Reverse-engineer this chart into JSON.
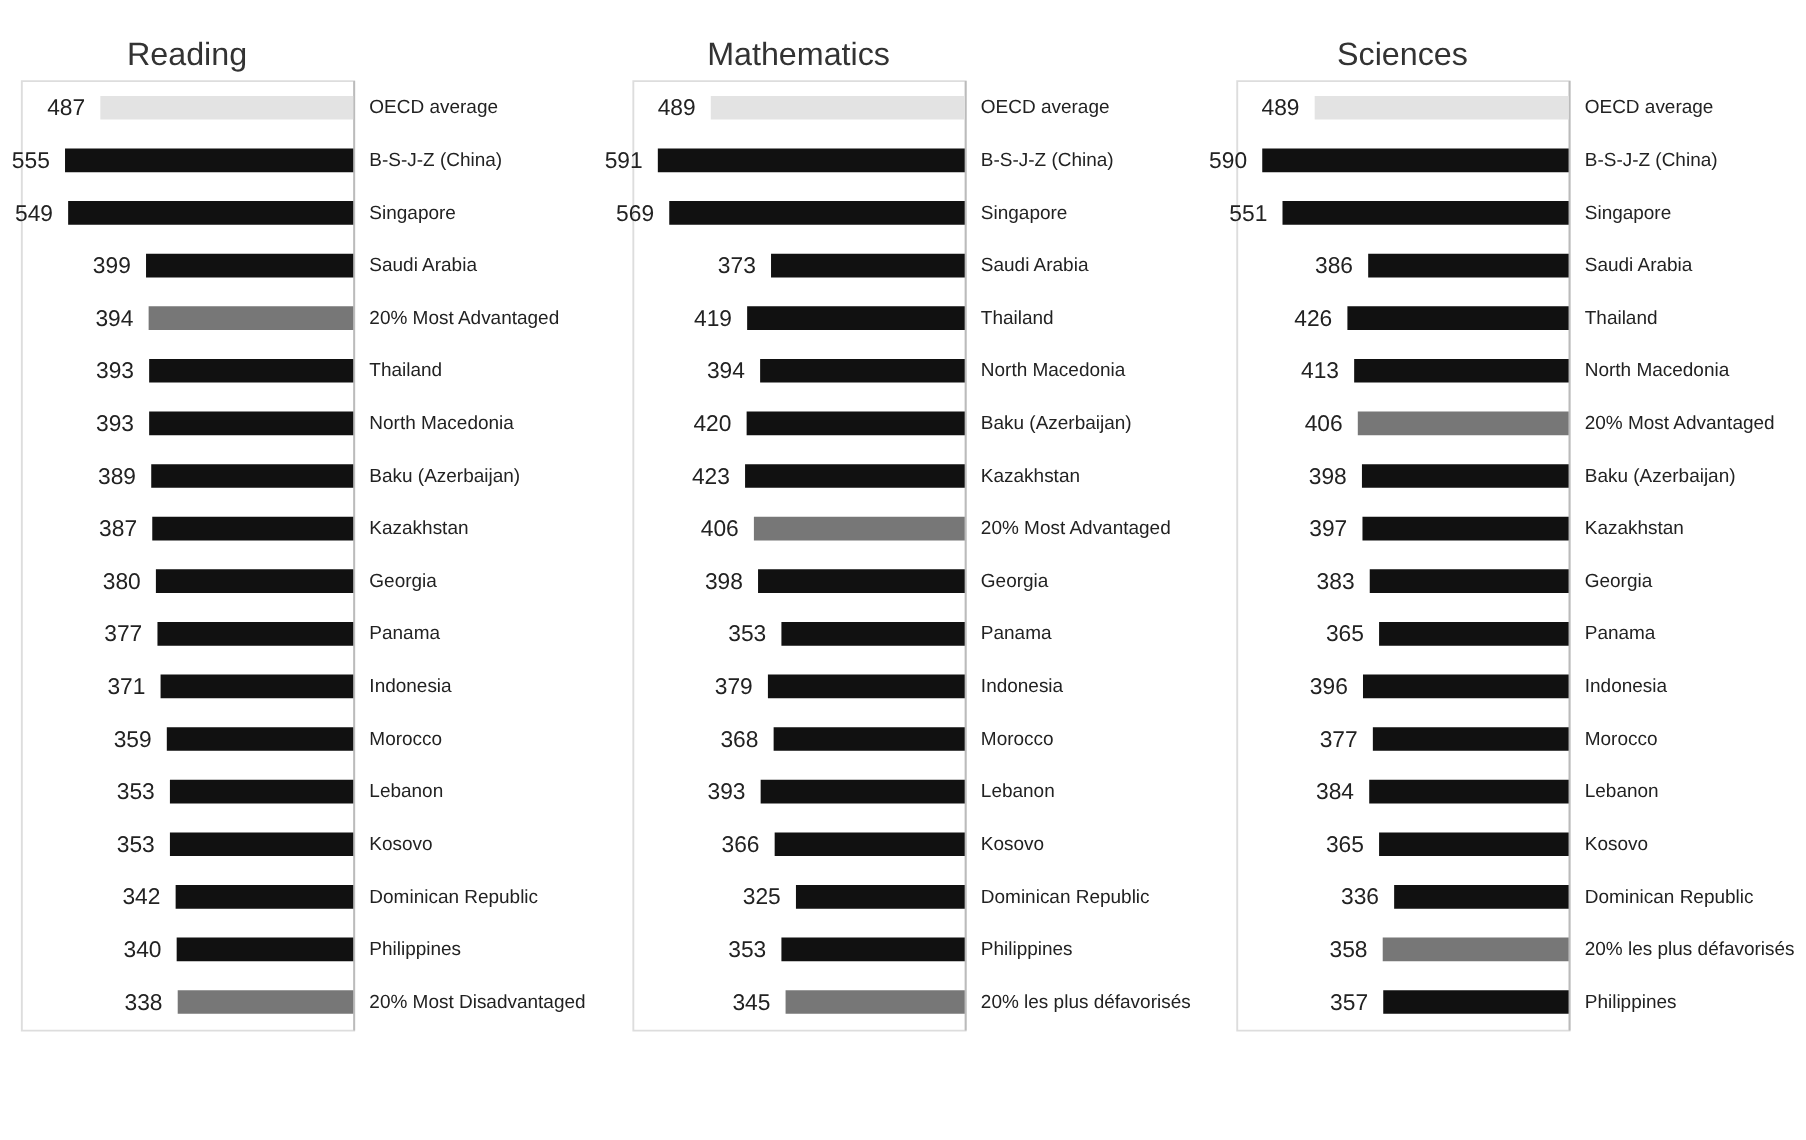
{
  "chart_data": [
    {
      "type": "bar",
      "orientation": "horizontal",
      "title": "Reading",
      "data_labels": true,
      "tick_labels": "y",
      "xlim": [
        640,
        0
      ],
      "categories": [
        "OECD average",
        "B-S-J-Z (China)",
        "Singapore",
        "Saudi Arabia",
        "20% Most Advantaged",
        "Thailand",
        "North Macedonia",
        "Baku (Azerbaijan)",
        "Kazakhstan",
        "Georgia",
        "Panama",
        "Indonesia",
        "Morocco",
        "Lebanon",
        "Kosovo",
        "Dominican Republic",
        "Philippines",
        "20% Most Disadvantaged"
      ],
      "values": [
        487,
        555,
        549,
        399,
        394,
        393,
        393,
        389,
        387,
        380,
        377,
        371,
        359,
        353,
        353,
        342,
        340,
        338
      ],
      "colors": [
        "#e3e3e3",
        "#111111",
        "#111111",
        "#111111",
        "#777777",
        "#111111",
        "#111111",
        "#111111",
        "#111111",
        "#111111",
        "#111111",
        "#111111",
        "#111111",
        "#111111",
        "#111111",
        "#111111",
        "#111111",
        "#777777"
      ]
    },
    {
      "type": "bar",
      "orientation": "horizontal",
      "title": "Mathematics",
      "data_labels": true,
      "tick_labels": "y",
      "xlim": [
        640,
        0
      ],
      "categories": [
        "OECD average",
        "B-S-J-Z (China)",
        "Singapore",
        "Saudi Arabia",
        "Thailand",
        "North Macedonia",
        "Baku (Azerbaijan)",
        "Kazakhstan",
        "20% Most Advantaged",
        "Georgia",
        "Panama",
        "Indonesia",
        "Morocco",
        "Lebanon",
        "Kosovo",
        "Dominican Republic",
        "Philippines",
        "20% les plus défavorisés"
      ],
      "values": [
        489,
        591,
        569,
        373,
        419,
        394,
        420,
        423,
        406,
        398,
        353,
        379,
        368,
        393,
        366,
        325,
        353,
        345
      ],
      "colors": [
        "#e3e3e3",
        "#111111",
        "#111111",
        "#111111",
        "#111111",
        "#111111",
        "#111111",
        "#111111",
        "#777777",
        "#111111",
        "#111111",
        "#111111",
        "#111111",
        "#111111",
        "#111111",
        "#111111",
        "#111111",
        "#777777"
      ]
    },
    {
      "type": "bar",
      "orientation": "horizontal",
      "title": "Sciences",
      "data_labels": true,
      "tick_labels": "y",
      "xlim": [
        640,
        0
      ],
      "categories": [
        "OECD average",
        "B-S-J-Z (China)",
        "Singapore",
        "Saudi Arabia",
        "Thailand",
        "North Macedonia",
        "20% Most Advantaged",
        "Baku (Azerbaijan)",
        "Kazakhstan",
        "Georgia",
        "Panama",
        "Indonesia",
        "Morocco",
        "Lebanon",
        "Kosovo",
        "Dominican Republic",
        "20% les plus défavorisés",
        "Philippines"
      ],
      "values": [
        489,
        590,
        551,
        386,
        426,
        413,
        406,
        398,
        397,
        383,
        365,
        396,
        377,
        384,
        365,
        336,
        358,
        357
      ],
      "colors": [
        "#e3e3e3",
        "#111111",
        "#111111",
        "#111111",
        "#111111",
        "#111111",
        "#777777",
        "#111111",
        "#111111",
        "#111111",
        "#111111",
        "#111111",
        "#111111",
        "#111111",
        "#111111",
        "#111111",
        "#777777",
        "#111111"
      ]
    }
  ]
}
